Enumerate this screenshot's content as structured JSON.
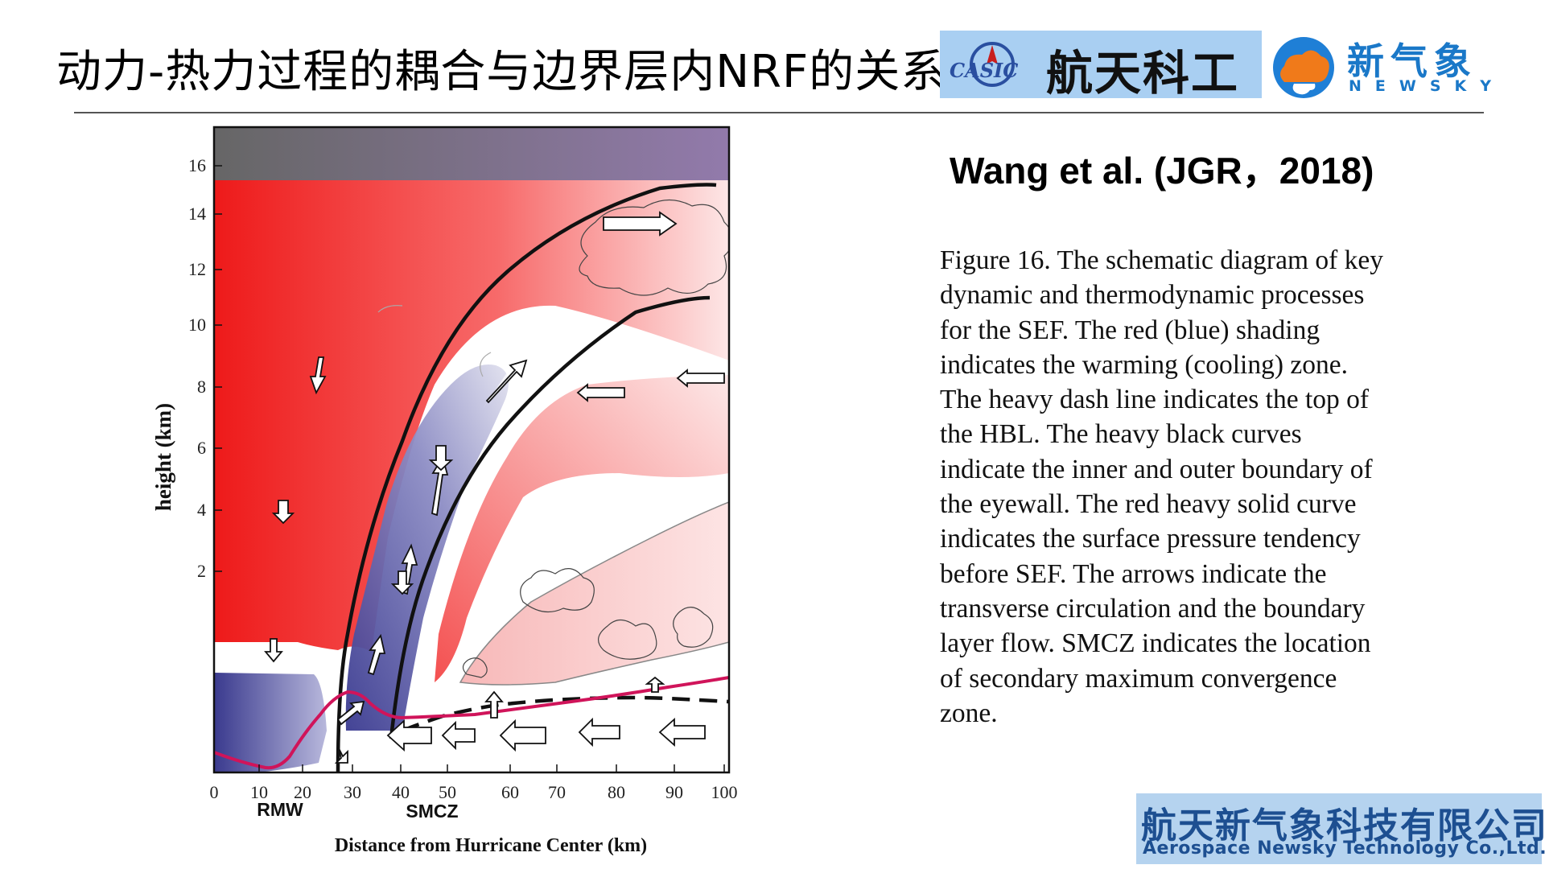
{
  "slide": {
    "title": "动力-热力过程的耦合与边界层内NRF的关系",
    "citation": "Wang et al. (JGR，2018)"
  },
  "logos": {
    "casic_mark_text": "CASIC",
    "casic_name": "航天科工",
    "newsky_cn": "新气象",
    "newsky_en": "NEWSKY"
  },
  "caption_lines": [
    "Figure 16. The schematic diagram of key",
    "dynamic and thermodynamic processes",
    "for the SEF. The red (blue) shading",
    "indicates the warming (cooling) zone.",
    "The heavy dash line indicates the top of",
    "the HBL. The heavy black curves",
    "indicate the inner and outer boundary of",
    "the eyewall. The red heavy solid curve",
    "indicates the surface pressure tendency",
    "before SEF. The arrows indicate the",
    "transverse circulation and the boundary",
    "layer flow. SMCZ indicates the location",
    "of secondary maximum convergence",
    "zone."
  ],
  "diagram": {
    "ylabel": "height (km)",
    "xlabel": "Distance from Hurricane Center (km)",
    "y_ticks": [
      "2",
      "4",
      "6",
      "8",
      "10",
      "12",
      "14",
      "16"
    ],
    "x_ticks": [
      "0",
      "10",
      "20",
      "30",
      "40",
      "50",
      "60",
      "70",
      "80",
      "90",
      "100"
    ],
    "markers": [
      "RMW",
      "SMCZ"
    ],
    "colors": {
      "warming": "#ee1111",
      "cooling": "#5a5aa6",
      "pressure_tendency": "#d0145a",
      "tropopause_band": "#776a90"
    }
  },
  "company": {
    "name_cn": "航天新气象科技有限公司",
    "name_en": "Aerospace Newsky Technology Co.,Ltd."
  }
}
